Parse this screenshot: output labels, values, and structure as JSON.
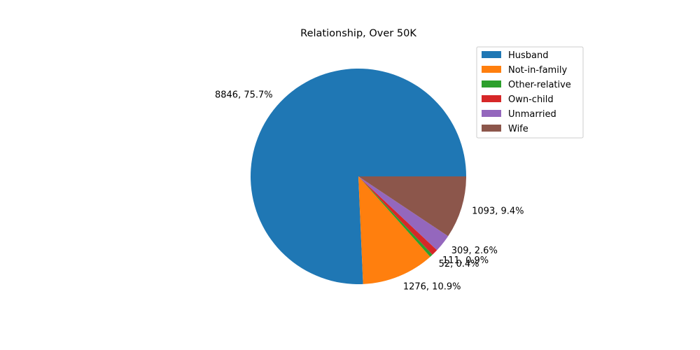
{
  "chart_data": {
    "type": "pie",
    "title": "Relationship, Over 50K",
    "start_angle_deg": 0,
    "direction": "counterclockwise",
    "legend_position": "top-right",
    "slices": [
      {
        "name": " Husband",
        "value": 8846,
        "label": "8846, 75.7%",
        "color": "#1f77b4"
      },
      {
        "name": " Not-in-family",
        "value": 1276,
        "label": "1276, 10.9%",
        "color": "#ff7f0e"
      },
      {
        "name": " Other-relative",
        "value": 52,
        "label": "52, 0.4%",
        "color": "#2ca02c"
      },
      {
        "name": " Own-child",
        "value": 111,
        "label": "111, 0.9%",
        "color": "#d62728"
      },
      {
        "name": " Unmarried",
        "value": 309,
        "label": "309, 2.6%",
        "color": "#9467bd"
      },
      {
        "name": " Wife",
        "value": 1093,
        "label": "1093, 9.4%",
        "color": "#8c564b"
      }
    ]
  }
}
